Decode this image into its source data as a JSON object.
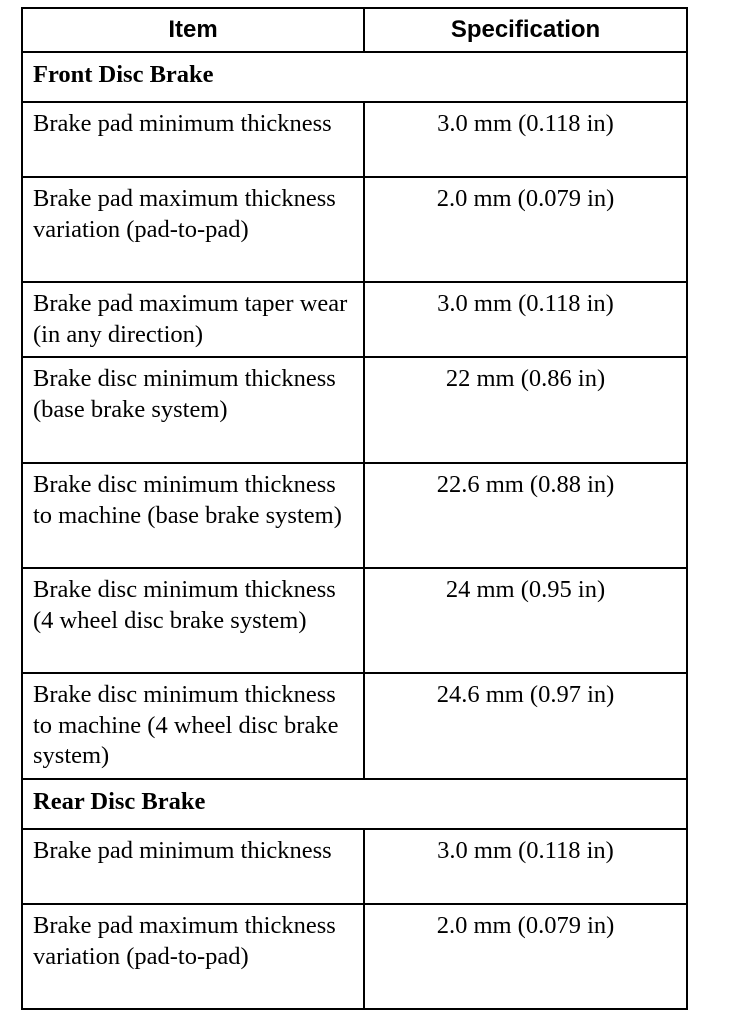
{
  "table": {
    "headers": [
      "Item",
      "Specification"
    ],
    "rows": [
      {
        "type": "section",
        "label": "Front Disc Brake"
      },
      {
        "type": "row",
        "item": "Brake pad minimum thickness",
        "spec": "3.0 mm (0.118 in)",
        "h": 75
      },
      {
        "type": "row",
        "item": "Brake pad maximum thickness variation (pad-to-pad)",
        "spec": "2.0 mm (0.079 in)",
        "h": 105
      },
      {
        "type": "row",
        "item": "Brake pad maximum taper wear (in any direction)",
        "spec": "3.0 mm (0.118 in)",
        "h": 75
      },
      {
        "type": "row",
        "item": "Brake disc minimum thickness (base brake system)",
        "spec": "22 mm (0.86 in)",
        "h": 106
      },
      {
        "type": "row",
        "item": "Brake disc minimum thickness to machine (base brake system)",
        "spec": "22.6 mm (0.88 in)",
        "h": 105
      },
      {
        "type": "row",
        "item": "Brake disc minimum thickness (4 wheel disc brake system)",
        "spec": "24 mm (0.95 in)",
        "h": 105
      },
      {
        "type": "row",
        "item": "Brake disc minimum thickness to machine (4 wheel disc brake system)",
        "spec": "24.6 mm (0.97 in)",
        "h": 106
      },
      {
        "type": "section",
        "label": "Rear Disc Brake"
      },
      {
        "type": "row",
        "item": "Brake pad minimum thickness",
        "spec": "3.0 mm (0.118 in)",
        "h": 75
      },
      {
        "type": "row",
        "item": "Brake pad maximum thickness variation (pad-to-pad)",
        "spec": "2.0 mm (0.079 in)",
        "h": 105
      }
    ]
  }
}
